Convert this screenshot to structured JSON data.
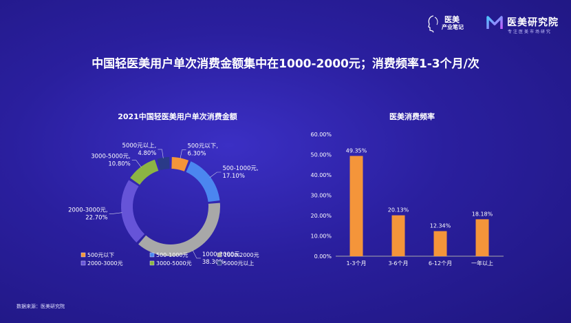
{
  "header": {
    "logo_left_line1": "医美",
    "logo_left_line2": "产业笔记",
    "logo_right_name": "医美研究院",
    "logo_right_slogan": "专注医美市场研究"
  },
  "title": "中国轻医美用户单次消费金额集中在1000-2000元；消费频率1-3个月/次",
  "source": "数据来源：医美研究院",
  "colors": {
    "orange": "#f4953a",
    "blue": "#4b86f0",
    "gray": "#a8a8a8",
    "purple": "#6654d8",
    "green": "#8cb444",
    "navy": "#2a3a88"
  },
  "chart_data": [
    {
      "type": "pie",
      "title": "2021中国轻医美用户单次消费金额",
      "slices": [
        {
          "label": "500元以下",
          "value": 6.3,
          "display": "6.30%",
          "color": "#f4953a"
        },
        {
          "label": "500-1000元",
          "value": 17.1,
          "display": "17.10%",
          "color": "#4b86f0"
        },
        {
          "label": "1000-2000元",
          "value": 38.3,
          "display": "38.30%",
          "color": "#a8a8a8"
        },
        {
          "label": "2000-3000元",
          "value": 22.7,
          "display": "22.70%",
          "color": "#6654d8"
        },
        {
          "label": "3000-5000元",
          "value": 10.8,
          "display": "10.80%",
          "color": "#8cb444"
        },
        {
          "label": "5000元以上",
          "value": 4.8,
          "display": "4.80%",
          "color": "#2a3a88"
        }
      ],
      "legend": "bottom"
    },
    {
      "type": "bar",
      "title": "医美消费频率",
      "categories": [
        "1-3个月",
        "3-6个月",
        "6-12个月",
        "一年以上"
      ],
      "values": [
        49.35,
        20.13,
        12.34,
        18.18
      ],
      "value_labels": [
        "49.35%",
        "20.13%",
        "12.34%",
        "18.18%"
      ],
      "yticks": [
        "0.00%",
        "10.00%",
        "20.00%",
        "30.00%",
        "40.00%",
        "50.00%",
        "60.00%"
      ],
      "ylim": [
        0,
        60
      ],
      "color": "#f4953a",
      "grid": false
    }
  ]
}
